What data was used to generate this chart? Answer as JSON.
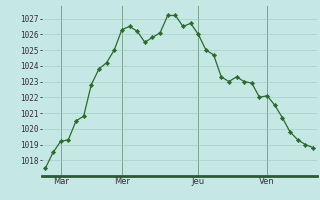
{
  "y_values": [
    1017.5,
    1018.5,
    1019.2,
    1019.3,
    1020.5,
    1020.8,
    1022.8,
    1023.8,
    1024.2,
    1025.0,
    1026.3,
    1026.5,
    1026.2,
    1025.5,
    1025.8,
    1026.1,
    1027.2,
    1027.2,
    1026.5,
    1026.7,
    1026.0,
    1025.0,
    1024.7,
    1023.3,
    1023.0,
    1023.3,
    1023.0,
    1022.9,
    1022.0,
    1022.1,
    1021.5,
    1020.7,
    1019.8,
    1019.3,
    1019.0,
    1018.8
  ],
  "day_labels": [
    "Mar",
    "Mer",
    "Jeu",
    "Ven"
  ],
  "day_positions": [
    2,
    10,
    20,
    29
  ],
  "ylim_min": 1017.0,
  "ylim_max": 1027.8,
  "yticks": [
    1018,
    1019,
    1020,
    1021,
    1022,
    1023,
    1024,
    1025,
    1026,
    1027
  ],
  "line_color": "#2d6a2d",
  "marker_color": "#2d6a2d",
  "bg_color": "#c5e8e4",
  "grid_major_color": "#a0c8c4",
  "grid_minor_color": "#b8dbd8",
  "fig_bg": "#c5e8e4",
  "bottom_bar_color": "#2d5a2d",
  "vline_color": "#4a7a4a",
  "text_color": "#333333",
  "ytick_fontsize": 5.5,
  "xtick_fontsize": 6.0
}
